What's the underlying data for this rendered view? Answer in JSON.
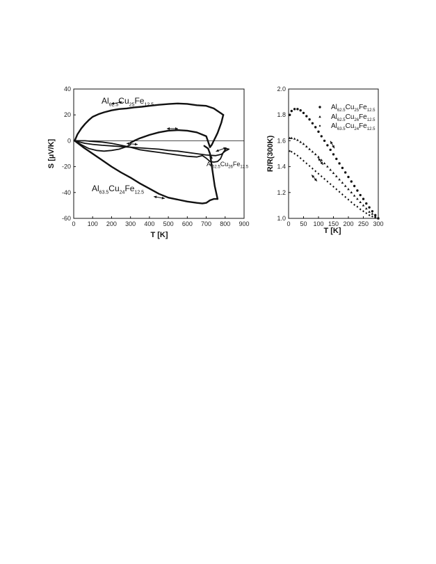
{
  "chart_data": [
    {
      "type": "line",
      "xlabel": "T [K]",
      "ylabel": "S [µV/K]",
      "xlim": [
        0,
        900
      ],
      "ylim": [
        -60,
        40
      ],
      "xticks": [
        0,
        100,
        200,
        300,
        400,
        500,
        600,
        700,
        800,
        900
      ],
      "yticks": [
        40,
        20,
        0,
        -20,
        -40,
        -60
      ],
      "zero_line": true,
      "series": [
        {
          "label": {
            "base1": "Al",
            "sub1": "62.5",
            "base2": "Cu",
            "sub2": "25",
            "base3": "Fe",
            "sub3": "12.5"
          },
          "style": "heavy",
          "branches": [
            {
              "x": [
                5,
                20,
                40,
                60,
                80,
                100,
                130,
                160,
                200,
                240,
                280,
                320,
                360,
                400,
                450,
                500,
                550,
                600,
                650,
                700,
                740,
                760,
                780,
                790
              ],
              "y": [
                0,
                5,
                9.5,
                13,
                16,
                18.5,
                20.5,
                22,
                23.5,
                24.5,
                25,
                25.8,
                26.3,
                27,
                27.8,
                28.4,
                28.8,
                28.5,
                27.5,
                27,
                25,
                23,
                21,
                20
              ]
            },
            {
              "x": [
                790,
                780,
                770,
                760,
                750,
                740,
                730,
                720,
                700,
                650,
                600,
                550,
                500,
                450,
                400,
                350,
                320,
                300
              ],
              "y": [
                20,
                14,
                10,
                6,
                3,
                0,
                -3,
                -5,
                3.5,
                6.5,
                7.8,
                8.2,
                7.8,
                6.5,
                4.5,
                2,
                0,
                -1.5
              ]
            }
          ]
        },
        {
          "label": {
            "base1": "Al",
            "sub1": "62.5",
            "base2": "Cu",
            "sub2": "26",
            "base3": "Fe",
            "sub3": "12.5"
          },
          "style": "medium",
          "branches": [
            {
              "x": [
                5,
                30,
                60,
                100,
                150,
                200,
                250,
                300,
                350,
                400,
                450,
                500,
                550,
                600,
                650,
                700,
                750,
                780,
                800,
                820,
                805
              ],
              "y": [
                0,
                -1,
                -2,
                -2.8,
                -3.5,
                -4,
                -4.5,
                -5,
                -5.5,
                -6,
                -6.5,
                -7.5,
                -8,
                -9,
                -10,
                -11,
                -11.5,
                -10.5,
                -8,
                -6.5,
                -6
              ]
            },
            {
              "x": [
                805,
                790,
                775,
                760,
                740,
                720,
                700,
                680,
                650,
                600,
                550,
                500,
                450,
                400,
                350,
                300,
                250,
                200,
                150,
                100,
                60,
                30,
                5
              ],
              "y": [
                -6,
                -9,
                -14,
                -16,
                -16.5,
                -16,
                -13.5,
                -11.5,
                -12.5,
                -12,
                -11,
                -10,
                -9,
                -8,
                -7,
                -5,
                -3.5,
                -2,
                -1,
                -0.5,
                0,
                0,
                0
              ]
            },
            {
              "x": [
                5,
                40,
                80,
                120,
                160,
                200,
                240,
                280,
                300
              ],
              "y": [
                0,
                -3,
                -6,
                -7.5,
                -8,
                -7.5,
                -6.5,
                -4.5,
                -3
              ]
            }
          ]
        },
        {
          "label": {
            "base1": "Al",
            "sub1": "63.5",
            "base2": "Cu",
            "sub2": "24",
            "base3": "Fe",
            "sub3": "12.5"
          },
          "style": "heavy",
          "branches": [
            {
              "x": [
                5,
                50,
                100,
                150,
                200,
                250,
                300,
                350,
                400,
                450,
                500,
                550,
                600,
                650,
                680,
                700,
                720,
                740,
                760
              ],
              "y": [
                0,
                -5,
                -10,
                -15,
                -20,
                -24.5,
                -28.5,
                -33,
                -37,
                -41,
                -44,
                -45.5,
                -47,
                -48,
                -48.5,
                -48,
                -46,
                -45,
                -45
              ]
            },
            {
              "x": [
                760,
                745,
                730,
                720,
                710,
                700,
                695,
                690
              ],
              "y": [
                -45,
                -35,
                -20,
                -10,
                -6,
                -5,
                -4.5,
                -4
              ]
            }
          ]
        }
      ],
      "direction_arrows": 6
    },
    {
      "type": "scatter",
      "xlabel": "T [K]",
      "ylabel": "R/R(300K)",
      "xlim": [
        0,
        300
      ],
      "ylim": [
        1.0,
        2.0
      ],
      "xticks": [
        0,
        50,
        100,
        150,
        200,
        250,
        300
      ],
      "yticks": [
        2.0,
        1.8,
        1.6,
        1.4,
        1.2,
        1.0
      ],
      "legend_position": "top-right",
      "series": [
        {
          "label": {
            "base1": "Al",
            "sub1": "62.5",
            "base2": "Cu",
            "sub2": "25",
            "base3": "Fe",
            "sub3": "12.5"
          },
          "marker": "circle",
          "x": [
            4,
            10,
            20,
            30,
            40,
            50,
            60,
            70,
            80,
            90,
            100,
            110,
            120,
            130,
            140,
            150,
            160,
            170,
            180,
            190,
            200,
            210,
            220,
            230,
            240,
            250,
            260,
            270,
            280,
            290,
            300
          ],
          "y": [
            1.8,
            1.83,
            1.845,
            1.845,
            1.835,
            1.815,
            1.79,
            1.765,
            1.735,
            1.705,
            1.67,
            1.635,
            1.6,
            1.565,
            1.53,
            1.495,
            1.46,
            1.425,
            1.39,
            1.355,
            1.32,
            1.285,
            1.25,
            1.215,
            1.18,
            1.15,
            1.115,
            1.085,
            1.055,
            1.025,
            1.0
          ]
        },
        {
          "label": {
            "base1": "Al",
            "sub1": "62.5",
            "base2": "Cu",
            "sub2": "26",
            "base3": "Fe",
            "sub3": "12.5"
          },
          "marker": "triangle",
          "x": [
            4,
            10,
            20,
            30,
            40,
            50,
            60,
            70,
            80,
            90,
            100,
            110,
            120,
            130,
            140,
            150,
            160,
            170,
            180,
            190,
            200,
            210,
            220,
            230,
            240,
            250,
            260,
            270,
            280,
            290,
            300
          ],
          "y": [
            1.62,
            1.62,
            1.615,
            1.605,
            1.59,
            1.575,
            1.555,
            1.535,
            1.515,
            1.495,
            1.475,
            1.45,
            1.425,
            1.4,
            1.375,
            1.35,
            1.325,
            1.3,
            1.275,
            1.25,
            1.225,
            1.2,
            1.175,
            1.15,
            1.125,
            1.1,
            1.075,
            1.05,
            1.035,
            1.015,
            1.0
          ]
        },
        {
          "label": {
            "base1": "Al",
            "sub1": "63.5",
            "base2": "Cu",
            "sub2": "24",
            "base3": "Fe",
            "sub3": "12.5"
          },
          "marker": "diamond",
          "x": [
            4,
            10,
            20,
            30,
            40,
            50,
            60,
            70,
            80,
            90,
            100,
            110,
            120,
            130,
            140,
            150,
            160,
            170,
            180,
            190,
            200,
            210,
            220,
            230,
            240,
            250,
            260,
            270,
            280,
            290,
            300
          ],
          "y": [
            1.52,
            1.515,
            1.5,
            1.485,
            1.465,
            1.445,
            1.425,
            1.405,
            1.385,
            1.365,
            1.345,
            1.325,
            1.305,
            1.285,
            1.265,
            1.245,
            1.225,
            1.205,
            1.185,
            1.165,
            1.145,
            1.125,
            1.105,
            1.09,
            1.07,
            1.055,
            1.04,
            1.025,
            1.015,
            1.005,
            1.0
          ]
        }
      ],
      "direction_arrows": 3
    }
  ]
}
